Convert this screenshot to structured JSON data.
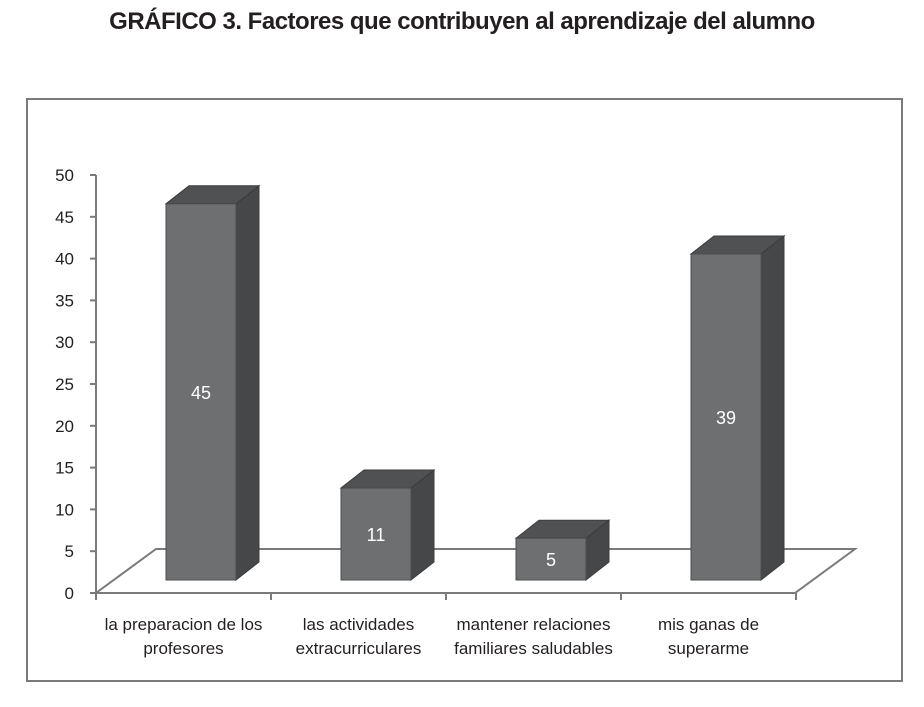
{
  "chart_data": {
    "type": "bar",
    "title": "GRÁFICO 3. Factores que contribuyen al aprendizaje del alumno",
    "categories": [
      [
        "la preparacion de los",
        "profesores"
      ],
      [
        "las actividades",
        "extracurriculares"
      ],
      [
        "mantener relaciones",
        "familiares saludables"
      ],
      [
        "mis ganas de",
        "superarme"
      ]
    ],
    "series": [
      {
        "values": [
          45,
          11,
          5,
          39
        ]
      }
    ],
    "data_labels": [
      "45",
      "11",
      "5",
      "39"
    ],
    "yticks": [
      "0",
      "5",
      "10",
      "15",
      "20",
      "25",
      "30",
      "35",
      "40",
      "45",
      "50"
    ],
    "ylim": [
      0,
      50
    ],
    "style": "3d-column",
    "grid": false,
    "colors": {
      "bar_front": "#6d6f71",
      "bar_side": "#454749",
      "bar_top": "#4f5153",
      "axis": "#7a7a7a"
    }
  }
}
